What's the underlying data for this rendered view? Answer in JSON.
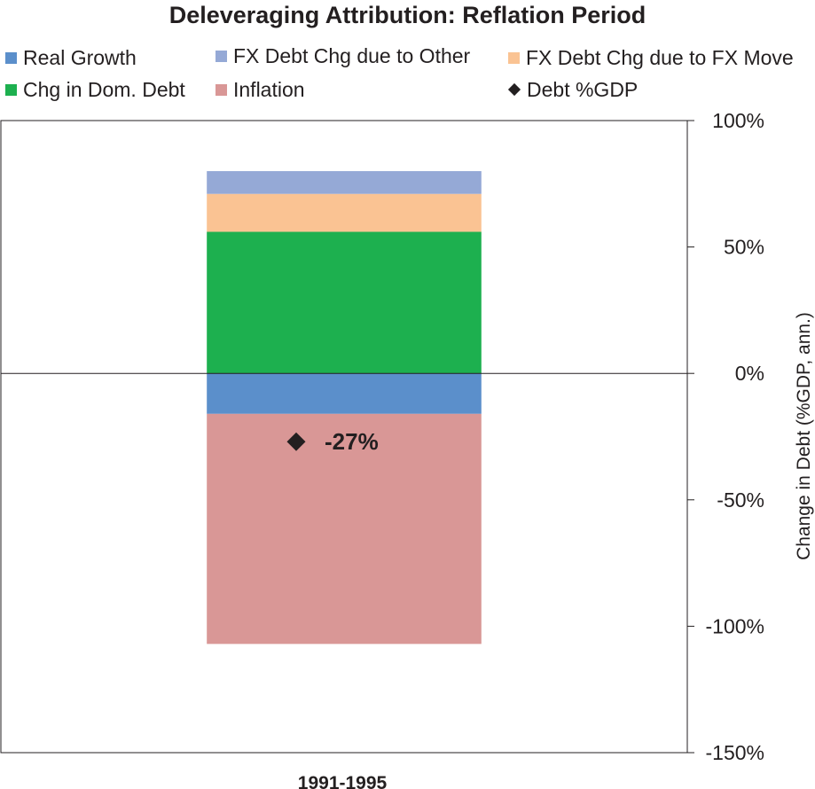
{
  "chart_data": {
    "type": "bar",
    "stacked": true,
    "title": "Deleveraging Attribution: Reflation Period",
    "ylabel": "Change in Debt (%GDP, ann.)",
    "ylim": [
      -150,
      100
    ],
    "yticks": [
      100,
      50,
      0,
      -50,
      -100,
      -150
    ],
    "ytick_labels": [
      "100%",
      "50%",
      "0%",
      "-50%",
      "-100%",
      "-150%"
    ],
    "yaxis_position": "right",
    "grid": false,
    "legend_position": "top",
    "categories": [
      "1991-1995"
    ],
    "series": [
      {
        "name": "Real Growth",
        "key": "real_growth",
        "color": "#5b8fcb",
        "values": [
          -16
        ]
      },
      {
        "name": "FX Debt Chg due to Other",
        "key": "fx_other",
        "color": "#95a9d6",
        "values": [
          9
        ]
      },
      {
        "name": "FX Debt Chg due to FX Move",
        "key": "fx_move",
        "color": "#fac393",
        "values": [
          15
        ]
      },
      {
        "name": "Chg in Dom. Debt",
        "key": "dom_debt",
        "color": "#1db04f",
        "values": [
          56
        ]
      },
      {
        "name": "Inflation",
        "key": "inflation",
        "color": "#d99796",
        "values": [
          -91
        ]
      }
    ],
    "stack_order_positive": [
      "dom_debt",
      "fx_move",
      "fx_other"
    ],
    "stack_order_negative": [
      "real_growth",
      "inflation"
    ],
    "debt_gdp": {
      "name": "Debt %GDP",
      "marker": "diamond",
      "color": "#231f20",
      "values": [
        -27
      ],
      "labels": [
        "-27%"
      ]
    }
  }
}
